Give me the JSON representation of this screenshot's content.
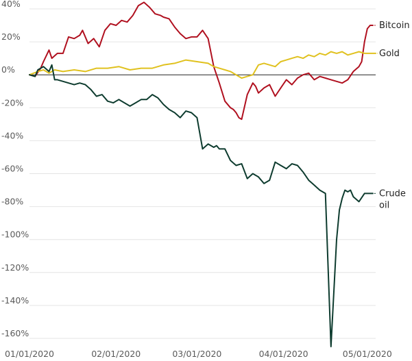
{
  "chart_data": {
    "type": "line",
    "title": "",
    "xlabel": "",
    "ylabel": "",
    "ylim": [
      -160,
      40
    ],
    "grid": true,
    "legend": "inline labels at right end of each line",
    "y_ticks": [
      40,
      20,
      0,
      -20,
      -40,
      -60,
      -80,
      -100,
      -120,
      -140,
      -160
    ],
    "y_tick_labels": [
      "40%",
      "20%",
      "0%",
      "-20%",
      "-40%",
      "-60%",
      "-80%",
      "-100%",
      "-120%",
      "-140%",
      "-160%"
    ],
    "x_ticks": [
      {
        "label": "01/01/2020",
        "day": 0
      },
      {
        "label": "02/01/2020",
        "day": 31
      },
      {
        "label": "03/01/2020",
        "day": 60
      },
      {
        "label": "04/01/2020",
        "day": 91
      },
      {
        "label": "05/01/2020",
        "day": 121
      }
    ],
    "series": [
      {
        "name": "Bitcoin",
        "color": "#b0101f",
        "x": [
          0,
          2,
          4,
          5,
          7,
          8,
          10,
          12,
          14,
          16,
          18,
          19,
          21,
          23,
          25,
          27,
          29,
          31,
          33,
          35,
          37,
          39,
          41,
          43,
          45,
          47,
          48,
          50,
          52,
          54,
          56,
          58,
          60,
          62,
          64,
          66,
          68,
          70,
          72,
          73,
          74,
          75,
          76,
          78,
          80,
          81,
          82,
          84,
          86,
          88,
          90,
          92,
          94,
          96,
          98,
          100,
          102,
          104,
          106,
          108,
          110,
          112,
          114,
          116,
          118,
          119,
          120,
          121,
          122,
          123
        ],
        "values": [
          0,
          -1,
          4,
          8,
          15,
          10,
          13,
          13,
          23,
          22,
          24,
          27,
          19,
          22,
          17,
          27,
          31,
          30,
          33,
          32,
          36,
          42,
          44,
          41,
          37,
          36,
          35,
          34,
          29,
          25,
          22,
          23,
          23,
          27,
          22,
          5,
          -5,
          -16,
          -20,
          -21,
          -23,
          -26,
          -27,
          -12,
          -5,
          -7,
          -11,
          -8,
          -6,
          -13,
          -8,
          -3,
          -6,
          -2,
          0,
          1,
          -3,
          -1,
          -2,
          -3,
          -4,
          -5,
          -3,
          2,
          5,
          8,
          20,
          28,
          30,
          30
        ]
      },
      {
        "name": "Gold",
        "color": "#e0c11e",
        "x": [
          0,
          3,
          5,
          7,
          9,
          12,
          16,
          20,
          24,
          28,
          32,
          36,
          40,
          44,
          48,
          52,
          56,
          60,
          64,
          66,
          68,
          70,
          72,
          74,
          76,
          78,
          80,
          82,
          84,
          86,
          88,
          90,
          92,
          94,
          96,
          98,
          100,
          102,
          104,
          106,
          108,
          110,
          112,
          114,
          116,
          118,
          120,
          122,
          124
        ],
        "values": [
          0,
          2,
          3,
          1,
          3,
          2,
          3,
          2,
          4,
          4,
          5,
          3,
          4,
          4,
          6,
          7,
          9,
          8,
          7,
          5,
          4,
          3,
          2,
          0,
          -2,
          -1,
          0,
          6,
          7,
          6,
          5,
          8,
          9,
          10,
          11,
          10,
          12,
          11,
          13,
          12,
          14,
          13,
          14,
          12,
          13,
          14,
          13,
          13,
          13
        ]
      },
      {
        "name": "Crude oil",
        "color": "#0d3b2e",
        "x": [
          0,
          2,
          3,
          5,
          7,
          8,
          9,
          10,
          12,
          14,
          16,
          18,
          20,
          22,
          24,
          26,
          28,
          30,
          32,
          34,
          36,
          38,
          40,
          42,
          44,
          46,
          48,
          50,
          52,
          54,
          56,
          58,
          60,
          62,
          64,
          66,
          67,
          68,
          70,
          72,
          74,
          76,
          78,
          80,
          82,
          84,
          86,
          88,
          90,
          92,
          94,
          96,
          98,
          100,
          102,
          104,
          106,
          108,
          110,
          111,
          112,
          113,
          114,
          115,
          116,
          118,
          120,
          121,
          122,
          123
        ],
        "values": [
          0,
          -1,
          3,
          5,
          2,
          6,
          -3,
          -3,
          -4,
          -5,
          -6,
          -5,
          -6,
          -9,
          -13,
          -12,
          -16,
          -17,
          -15,
          -17,
          -19,
          -17,
          -15,
          -15,
          -12,
          -14,
          -18,
          -21,
          -23,
          -26,
          -22,
          -23,
          -26,
          -45,
          -42,
          -44,
          -43,
          -45,
          -45,
          -52,
          -55,
          -54,
          -63,
          -60,
          -62,
          -66,
          -64,
          -53,
          -55,
          -57,
          -54,
          -55,
          -59,
          -64,
          -67,
          -70,
          -72,
          -165,
          -100,
          -82,
          -75,
          -70,
          -71,
          -70,
          -74,
          -77,
          -72,
          -72,
          -72,
          -72
        ]
      }
    ],
    "labels": [
      {
        "series": "Bitcoin",
        "lines": [
          "Bitcoin"
        ]
      },
      {
        "series": "Gold",
        "lines": [
          "Gold"
        ]
      },
      {
        "series": "Crude oil",
        "lines": [
          "Crude",
          "oil"
        ]
      }
    ]
  }
}
